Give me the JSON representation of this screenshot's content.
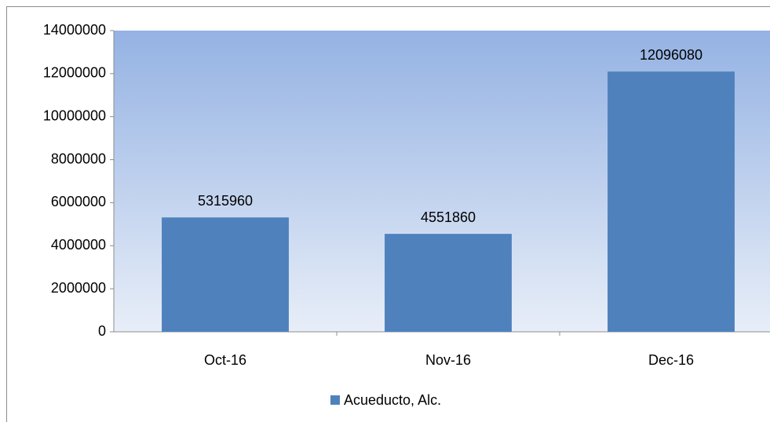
{
  "chart_data": {
    "type": "bar",
    "categories": [
      "Oct-16",
      "Nov-16",
      "Dec-16"
    ],
    "series": [
      {
        "name": "Acueducto, Alc.",
        "color": "#4f81bd",
        "values": [
          5315960,
          4551860,
          12096080
        ]
      }
    ],
    "ylim": [
      0,
      14000000
    ],
    "yticks": [
      0,
      2000000,
      4000000,
      6000000,
      8000000,
      10000000,
      12000000,
      14000000
    ],
    "legend": "bottom"
  }
}
